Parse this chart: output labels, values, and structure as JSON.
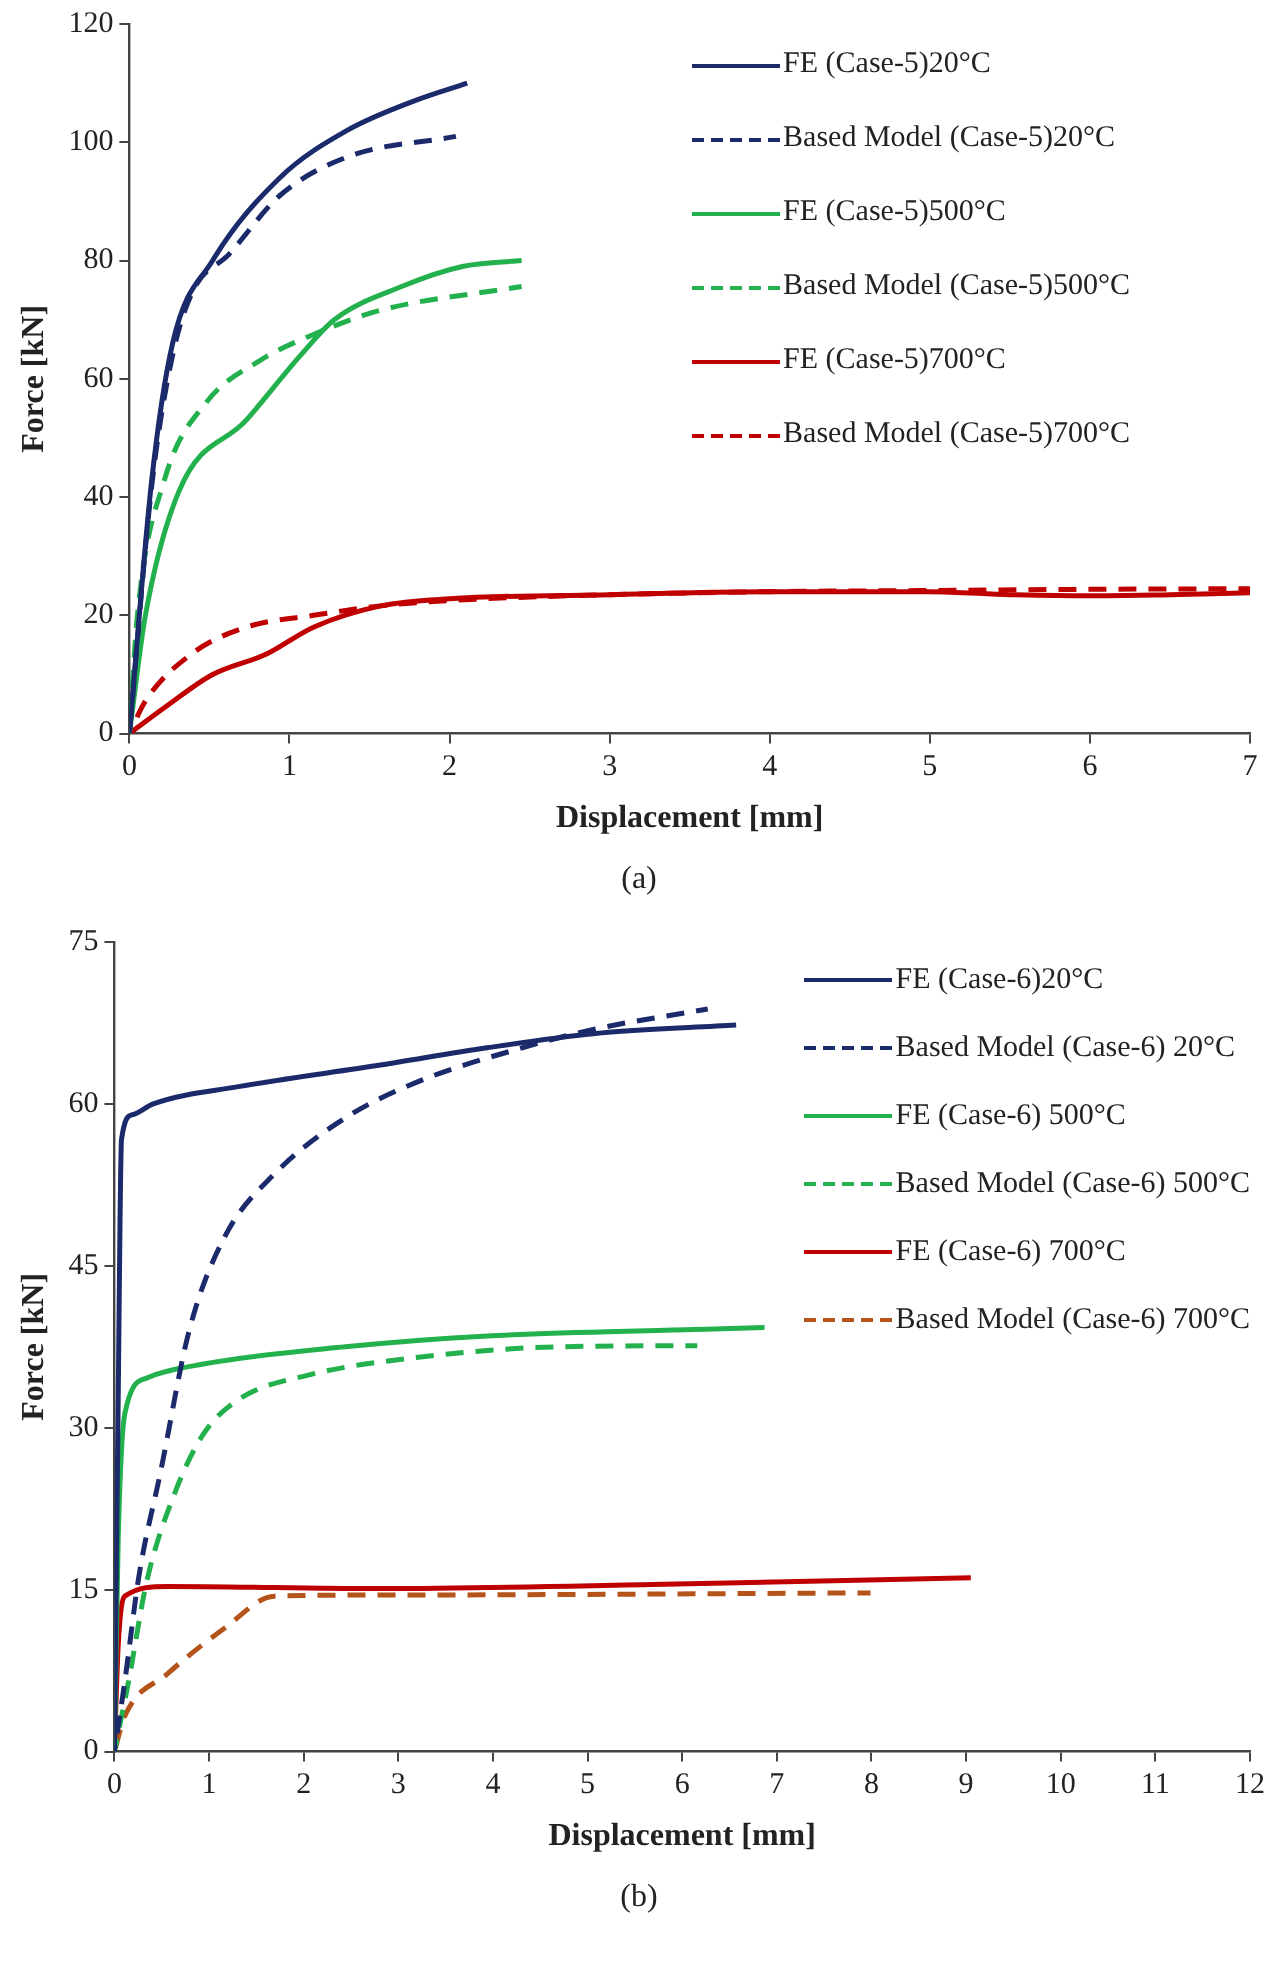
{
  "chart_data": [
    {
      "type": "line",
      "xlabel": "Displacement [mm]",
      "ylabel": "Force [kN]",
      "xlim": [
        0,
        7
      ],
      "xticks": [
        0,
        1,
        2,
        3,
        4,
        5,
        6,
        7
      ],
      "ylim": [
        0,
        120
      ],
      "yticks": [
        0,
        20,
        40,
        60,
        80,
        100,
        120
      ],
      "grid": false,
      "legend": "top right",
      "marker": "none",
      "annotations": [
        "(a)"
      ],
      "series": [
        {
          "name": "FE (Case-5)20°C",
          "color": "#1b2a6b",
          "line_style": "solid",
          "x": [
            0,
            0.14,
            0.27,
            0.52,
            0.94,
            1.36,
            1.78,
            2.11
          ],
          "values": [
            0,
            43,
            66,
            80,
            94,
            102,
            107,
            110
          ]
        },
        {
          "name": "Based Model (Case-5)20°C",
          "color": "#1b2a6b",
          "line_style": "dashed",
          "x": [
            0,
            0.14,
            0.27,
            0.4,
            0.62,
            0.94,
            1.36,
            2.04
          ],
          "values": [
            0,
            42,
            64,
            75,
            81,
            91,
            97.5,
            101
          ]
        },
        {
          "name": "FE (Case-5)500°C",
          "color": "#22b14c",
          "line_style": "solid",
          "x": [
            0,
            0.1,
            0.31,
            0.73,
            1.07,
            1.28,
            1.7,
            2.08,
            2.45
          ],
          "values": [
            0,
            20,
            41,
            53,
            64,
            70,
            75.6,
            79,
            80
          ]
        },
        {
          "name": "Based Model (Case-5)500°C",
          "color": "#22b14c",
          "line_style": "dashed",
          "x": [
            0,
            0.05,
            0.22,
            0.48,
            0.81,
            1.15,
            1.57,
            2.45
          ],
          "values": [
            0,
            20,
            43,
            56,
            63,
            67.5,
            71.6,
            75.6
          ]
        },
        {
          "name": "FE (Case-5)700°C",
          "color": "#c00000",
          "line_style": "solid",
          "x": [
            0,
            0.22,
            0.52,
            0.86,
            1.15,
            1.57,
            2,
            3,
            4,
            5,
            5.5,
            6,
            6.5,
            7
          ],
          "values": [
            0,
            4.4,
            10,
            13.5,
            18,
            21.6,
            22.8,
            23.5,
            24,
            24,
            23.5,
            23.3,
            23.5,
            23.8
          ]
        },
        {
          "name": "Based Model (Case-5)700°C",
          "color": "#c00000",
          "line_style": "dashed",
          "x": [
            0,
            0.1,
            0.39,
            0.73,
            1.15,
            1.57,
            2,
            3,
            4,
            5,
            6,
            7
          ],
          "values": [
            0,
            5.5,
            13.5,
            18,
            20,
            21.6,
            22.5,
            23.5,
            24,
            24.2,
            24.4,
            24.5
          ]
        }
      ]
    },
    {
      "type": "line",
      "xlabel": "Displacement [mm]",
      "ylabel": "Force [kN]",
      "xlim": [
        0,
        12
      ],
      "xticks": [
        0,
        1,
        2,
        3,
        4,
        5,
        6,
        7,
        8,
        9,
        10,
        11,
        12
      ],
      "ylim": [
        0,
        75
      ],
      "yticks": [
        0,
        15,
        30,
        45,
        60,
        75
      ],
      "grid": false,
      "legend": "top right",
      "marker": "none",
      "annotations": [
        "(b)"
      ],
      "series": [
        {
          "name": "FE (Case-6)20°C",
          "color": "#1b2a6b",
          "line_style": "solid",
          "x": [
            0,
            0.04,
            0.075,
            0.19,
            0.41,
            1.31,
            2.81,
            3.94,
            5.06,
            6.57
          ],
          "values": [
            0,
            32.6,
            56.7,
            59,
            60,
            61.6,
            63.6,
            65.2,
            66.5,
            67.3
          ]
        },
        {
          "name": "Based Model (Case-6) 20°C",
          "color": "#1b2a6b",
          "line_style": "dashed",
          "x": [
            0,
            0.11,
            0.26,
            0.49,
            0.79,
            1.16,
            1.69,
            2.44,
            3.19,
            4.31,
            5.06,
            6.27
          ],
          "values": [
            0,
            6.5,
            16.3,
            26,
            39,
            47.6,
            53.5,
            58.7,
            62,
            65.2,
            66.9,
            68.8
          ]
        },
        {
          "name": "FE (Case-6) 500°C",
          "color": "#22b14c",
          "line_style": "solid",
          "x": [
            0,
            0.04,
            0.11,
            0.34,
            0.94,
            2.44,
            3.94,
            6.11,
            6.87
          ],
          "values": [
            0,
            19.6,
            31.3,
            34.6,
            35.9,
            37.5,
            38.5,
            39.1,
            39.3
          ]
        },
        {
          "name": "Based Model (Case-6) 500°C",
          "color": "#22b14c",
          "line_style": "dashed",
          "x": [
            0,
            0.15,
            0.34,
            0.64,
            0.94,
            1.31,
            2.06,
            3.19,
            4.69,
            6.16
          ],
          "values": [
            0,
            6.5,
            15.7,
            24,
            29.4,
            32.6,
            34.9,
            36.5,
            37.5,
            37.6
          ]
        },
        {
          "name": "FE (Case-6) 700°C",
          "color": "#c00000",
          "line_style": "solid",
          "x": [
            0,
            0.04,
            0.11,
            0.56,
            2.81,
            5.81,
            9.05
          ],
          "values": [
            0,
            9.8,
            14.4,
            15.3,
            15.1,
            15.5,
            16.1
          ]
        },
        {
          "name": "Based Model (Case-6) 700°C",
          "color": "#b5541a",
          "line_style": "dashed",
          "x": [
            0,
            0.11,
            0.56,
            1.16,
            1.69,
            2.81,
            7.99
          ],
          "values": [
            0,
            3.3,
            7.2,
            11.4,
            14.4,
            14.5,
            14.7
          ]
        }
      ]
    }
  ]
}
